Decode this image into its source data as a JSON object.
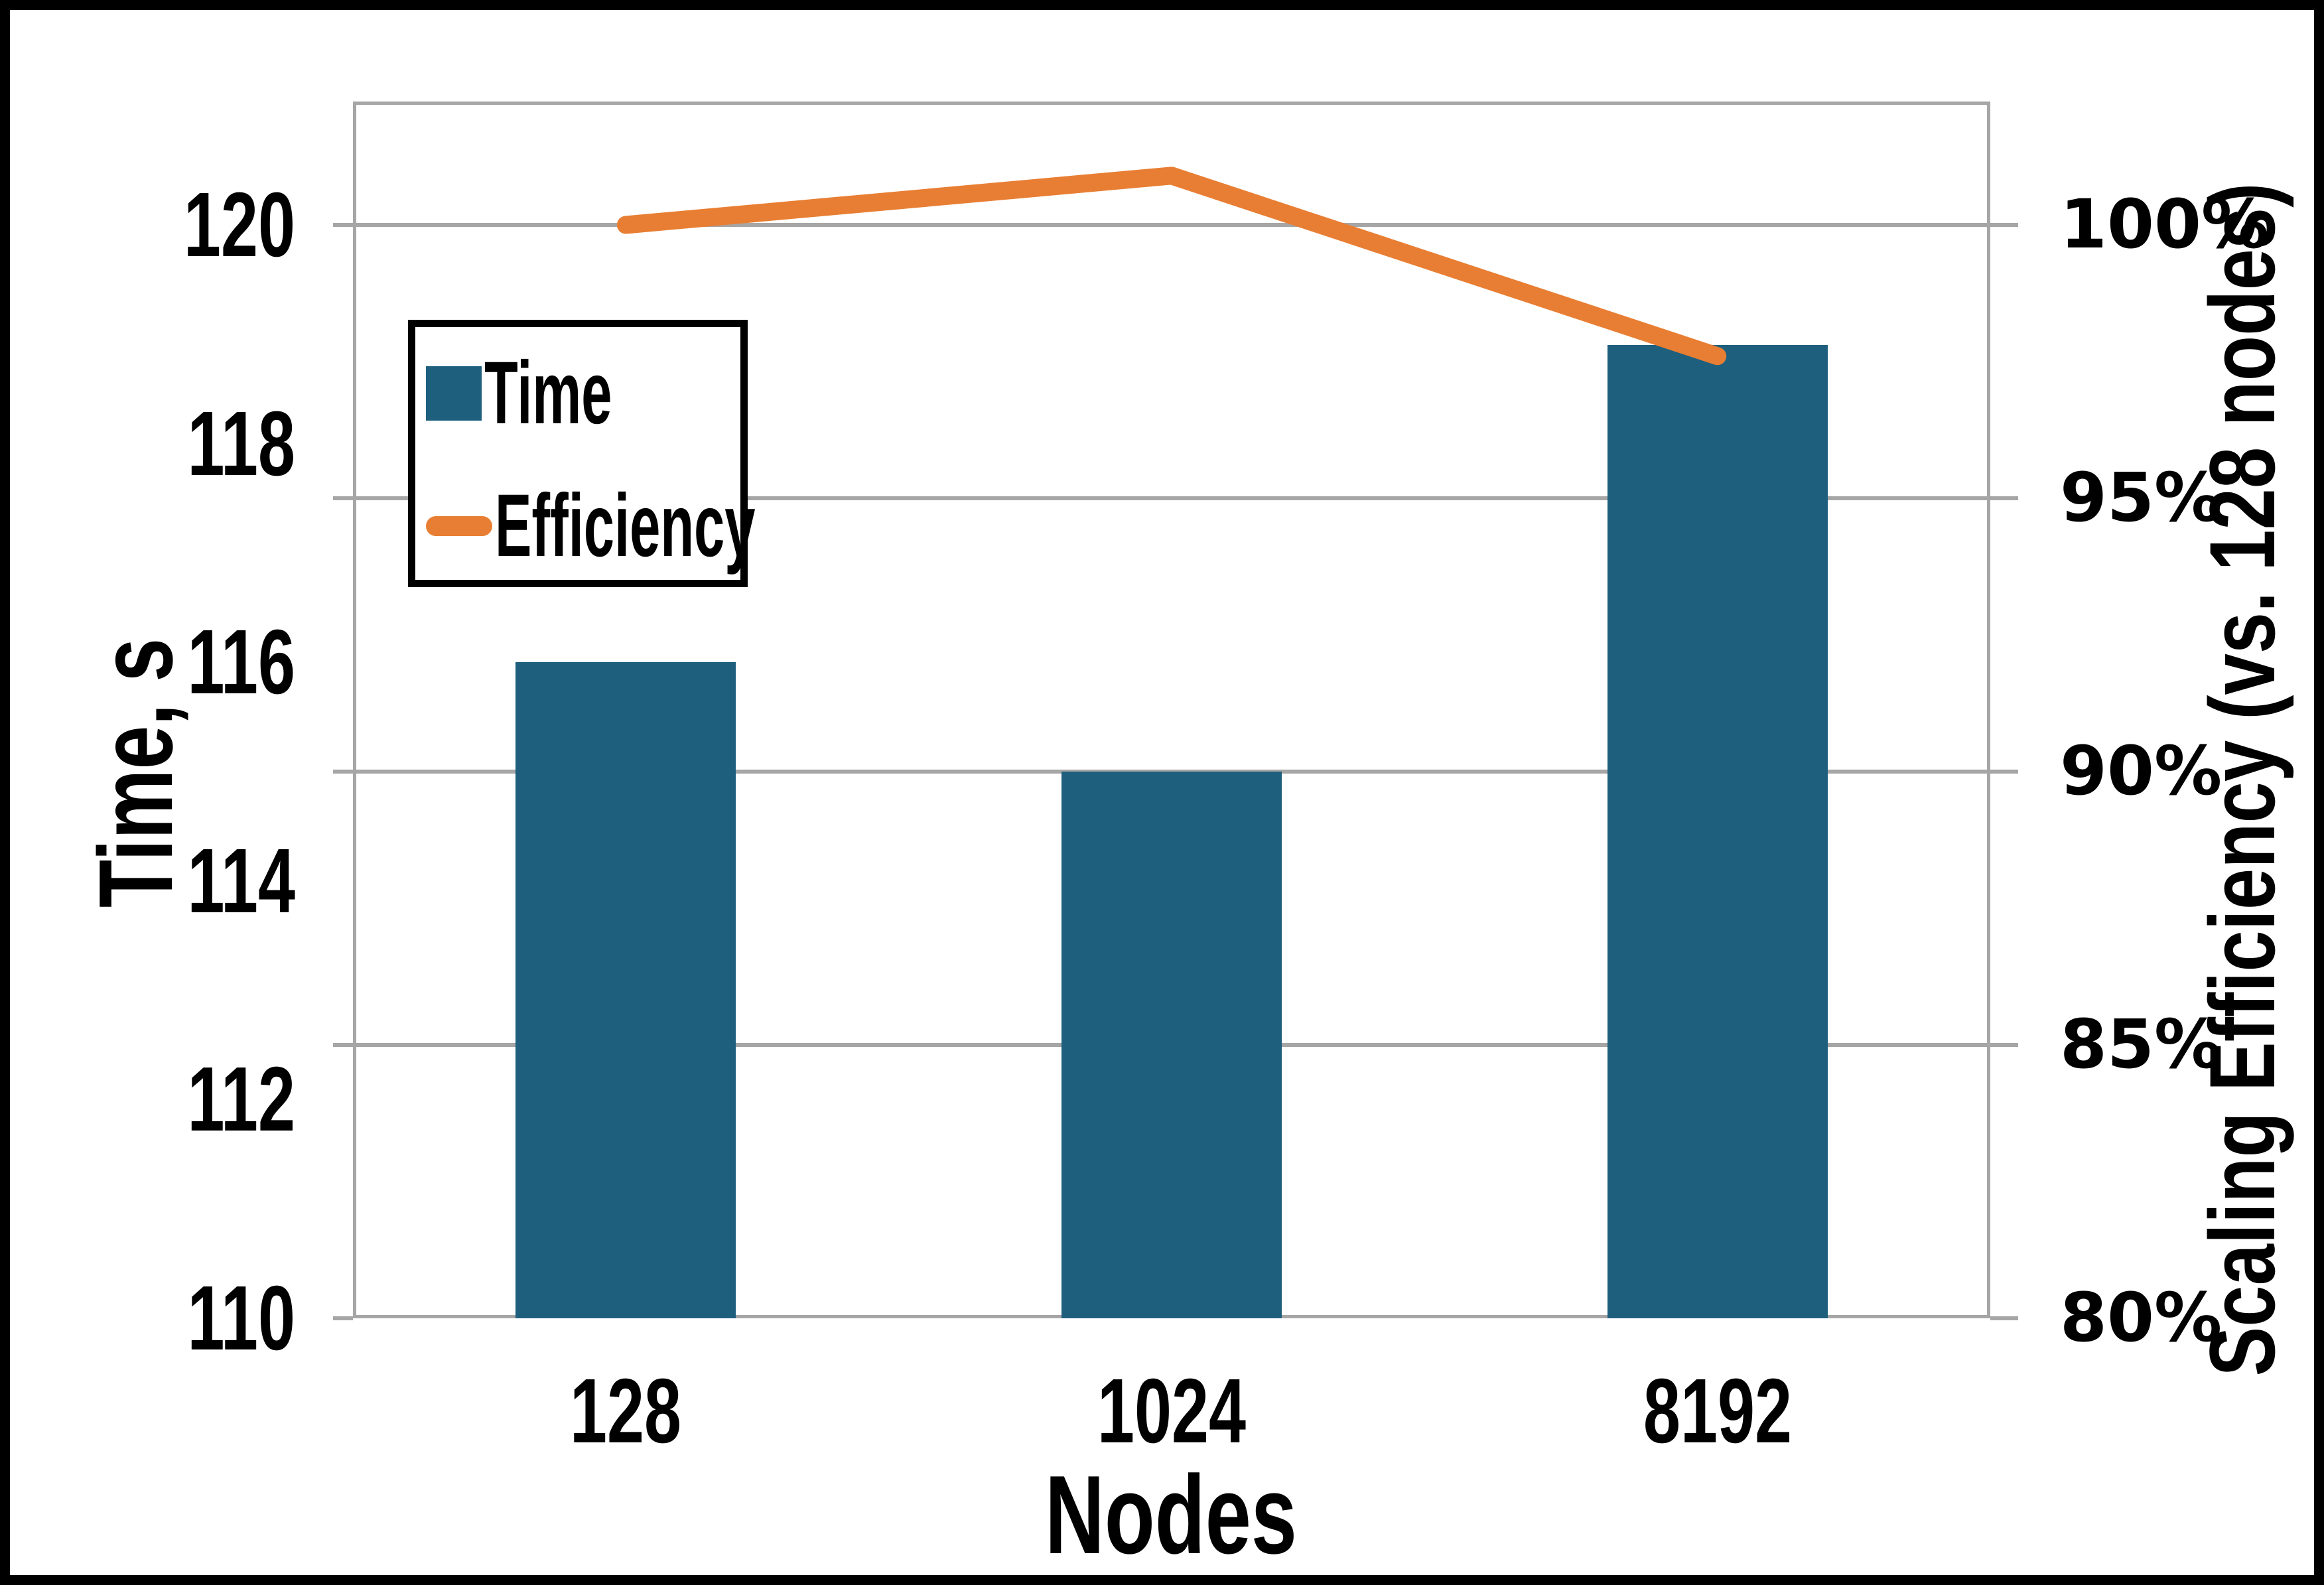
{
  "chart_data": {
    "type": "bar",
    "subtype": "bar+line dual-axis combo",
    "categories": [
      "128",
      "1024",
      "8192"
    ],
    "series": [
      {
        "name": "Time",
        "type": "bar",
        "axis": "left",
        "unit": "s",
        "values": [
          116.0,
          115.0,
          118.9
        ],
        "color": "#1E5F7E"
      },
      {
        "name": "Efficiency",
        "type": "line",
        "axis": "right",
        "unit": "%",
        "values": [
          100.0,
          100.9,
          97.6
        ],
        "color": "#E87E33"
      }
    ],
    "x_axis": {
      "title": "Nodes",
      "tick_labels": [
        "128",
        "1024",
        "8192"
      ]
    },
    "left_axis": {
      "title": "Time, s",
      "tick_values": [
        110,
        112,
        114,
        116,
        118,
        120
      ],
      "tick_labels": [
        "110",
        "112",
        "114",
        "116",
        "118",
        "120"
      ],
      "min": 110,
      "max": 121.1
    },
    "right_axis": {
      "title": "Scaling Efficiency (vs. 128 nodes)",
      "tick_values": [
        80,
        85,
        90,
        95,
        100
      ],
      "tick_labels": [
        "80%",
        "85%",
        "90%",
        "95%",
        "100%"
      ],
      "min": 80,
      "max": 102.3,
      "gridline_values": [
        85,
        90,
        95,
        100
      ]
    },
    "legend": {
      "position": "upper-left",
      "items": [
        {
          "label": "Time",
          "marker": "square",
          "color": "#1E5F7E"
        },
        {
          "label": "Efficiency",
          "marker": "line",
          "color": "#E87E33"
        }
      ]
    },
    "grid": "horizontal",
    "title": ""
  },
  "colors": {
    "background": "#FFFFFF",
    "frame": "#000000",
    "gridline": "#A6A6A6",
    "axis_line": "#A6A6A6",
    "text": "#000000",
    "bar": "#1E5F7E",
    "line": "#E87E33"
  }
}
